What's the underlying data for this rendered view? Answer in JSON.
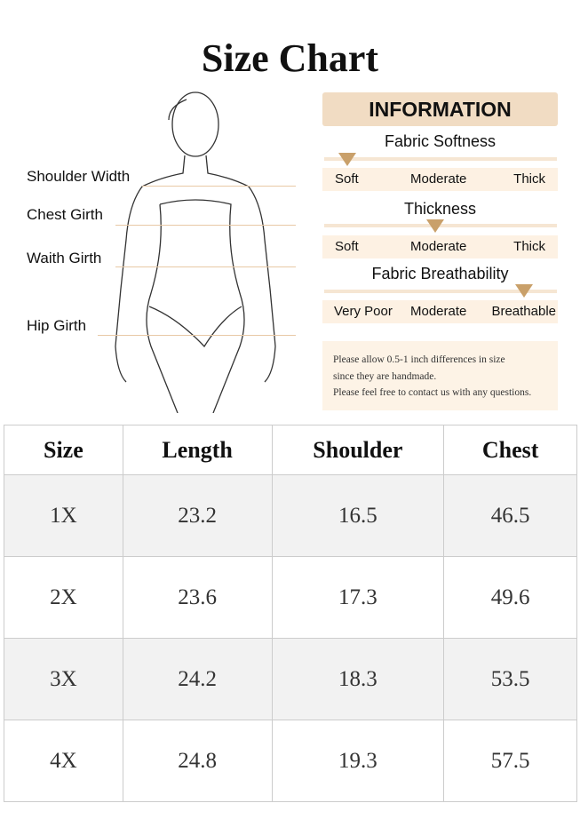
{
  "title": "Size Chart",
  "measurements": [
    "Shoulder Width",
    "Chest Girth",
    "Waith Girth",
    "Hip Girth"
  ],
  "info": {
    "header": "INFORMATION",
    "scales": [
      {
        "title": "Fabric Softness",
        "labels": [
          "Soft",
          "Moderate",
          "Thick"
        ],
        "selected": "Soft"
      },
      {
        "title": "Thickness",
        "labels": [
          "Soft",
          "Moderate",
          "Thick"
        ],
        "selected": "Moderate"
      },
      {
        "title": "Fabric Breathability",
        "labels": [
          "Very Poor",
          "Moderate",
          "Breathable"
        ],
        "selected": "Breathable"
      }
    ],
    "note": [
      "Please allow 0.5-1 inch differences in size",
      "since they are handmade.",
      "Please feel free to contact us with any questions."
    ]
  },
  "colors": {
    "accent": "#c9a06a",
    "header_bg": "#f1dcc3",
    "bar_bg": "#fdf1e3"
  },
  "table": {
    "headers": [
      "Size",
      "Length",
      "Shoulder",
      "Chest"
    ],
    "rows": [
      [
        "1X",
        "23.2",
        "16.5",
        "46.5"
      ],
      [
        "2X",
        "23.6",
        "17.3",
        "49.6"
      ],
      [
        "3X",
        "24.2",
        "18.3",
        "53.5"
      ],
      [
        "4X",
        "24.8",
        "19.3",
        "57.5"
      ]
    ]
  }
}
